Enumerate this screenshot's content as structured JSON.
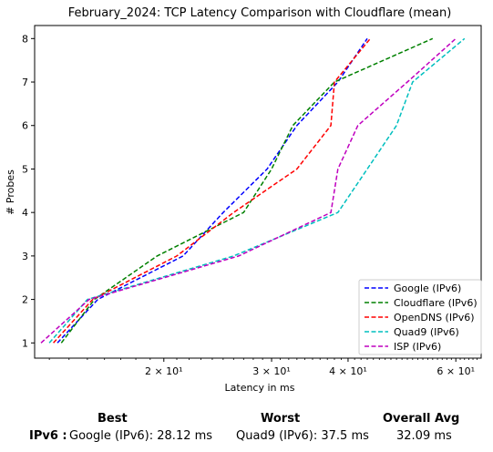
{
  "chart_data": {
    "type": "line",
    "title": "February_2024: TCP Latency Comparison with Cloudflare (mean)",
    "xlabel": "Latency in ms",
    "ylabel": "# Probes",
    "xscale": "log",
    "xlim": [
      12.3,
      66
    ],
    "ylim": [
      0.65,
      8.3
    ],
    "xticks": [
      {
        "value": 20,
        "label": "2 × 10¹"
      },
      {
        "value": 30,
        "label": "3 × 10¹"
      },
      {
        "value": 40,
        "label": "4 × 10¹"
      },
      {
        "value": 60,
        "label": "6 × 10¹"
      }
    ],
    "yticks": [
      1,
      2,
      3,
      4,
      5,
      6,
      7,
      8
    ],
    "grid": false,
    "legend_position": "bottom-right",
    "series": [
      {
        "name": "Google (IPv6)",
        "color": "#0000ff",
        "dash": "dashed",
        "points": [
          [
            13.4,
            1
          ],
          [
            15.6,
            2
          ],
          [
            21.5,
            3
          ],
          [
            25.0,
            4
          ],
          [
            29.5,
            5
          ],
          [
            33.0,
            6
          ],
          [
            38.5,
            7
          ],
          [
            43.0,
            8
          ]
        ]
      },
      {
        "name": "Cloudflare (IPv6)",
        "color": "#008000",
        "dash": "dashed",
        "points": [
          [
            13.6,
            1
          ],
          [
            15.4,
            2
          ],
          [
            19.5,
            3
          ],
          [
            27.0,
            4
          ],
          [
            30.0,
            5
          ],
          [
            32.5,
            6
          ],
          [
            38.0,
            7
          ],
          [
            55.0,
            8
          ]
        ]
      },
      {
        "name": "OpenDNS (IPv6)",
        "color": "#ff0000",
        "dash": "dashed",
        "points": [
          [
            13.2,
            1
          ],
          [
            15.3,
            2
          ],
          [
            21.0,
            3
          ],
          [
            26.0,
            4
          ],
          [
            33.0,
            5
          ],
          [
            37.5,
            6
          ],
          [
            38.0,
            7
          ],
          [
            43.5,
            8
          ]
        ]
      },
      {
        "name": "Quad9 (IPv6)",
        "color": "#00bfbf",
        "dash": "dashed",
        "points": [
          [
            13.0,
            1
          ],
          [
            15.0,
            2
          ],
          [
            26.0,
            3
          ],
          [
            38.5,
            4
          ],
          [
            43.0,
            5
          ],
          [
            48.0,
            6
          ],
          [
            51.0,
            7
          ],
          [
            62.0,
            8
          ]
        ]
      },
      {
        "name": "ISP (IPv6)",
        "color": "#bf00bf",
        "dash": "dashed",
        "points": [
          [
            12.6,
            1
          ],
          [
            15.1,
            2
          ],
          [
            26.5,
            3
          ],
          [
            37.5,
            4
          ],
          [
            38.5,
            5
          ],
          [
            41.5,
            6
          ],
          [
            50.0,
            7
          ],
          [
            60.0,
            8
          ]
        ]
      }
    ]
  },
  "summary": {
    "best_header": "Best",
    "worst_header": "Worst",
    "avg_header": "Overall Avg",
    "row_label": "IPv6 :",
    "best_value": "Google (IPv6): 28.12 ms",
    "worst_value": "Quad9 (IPv6): 37.5 ms",
    "avg_value": "32.09 ms"
  }
}
